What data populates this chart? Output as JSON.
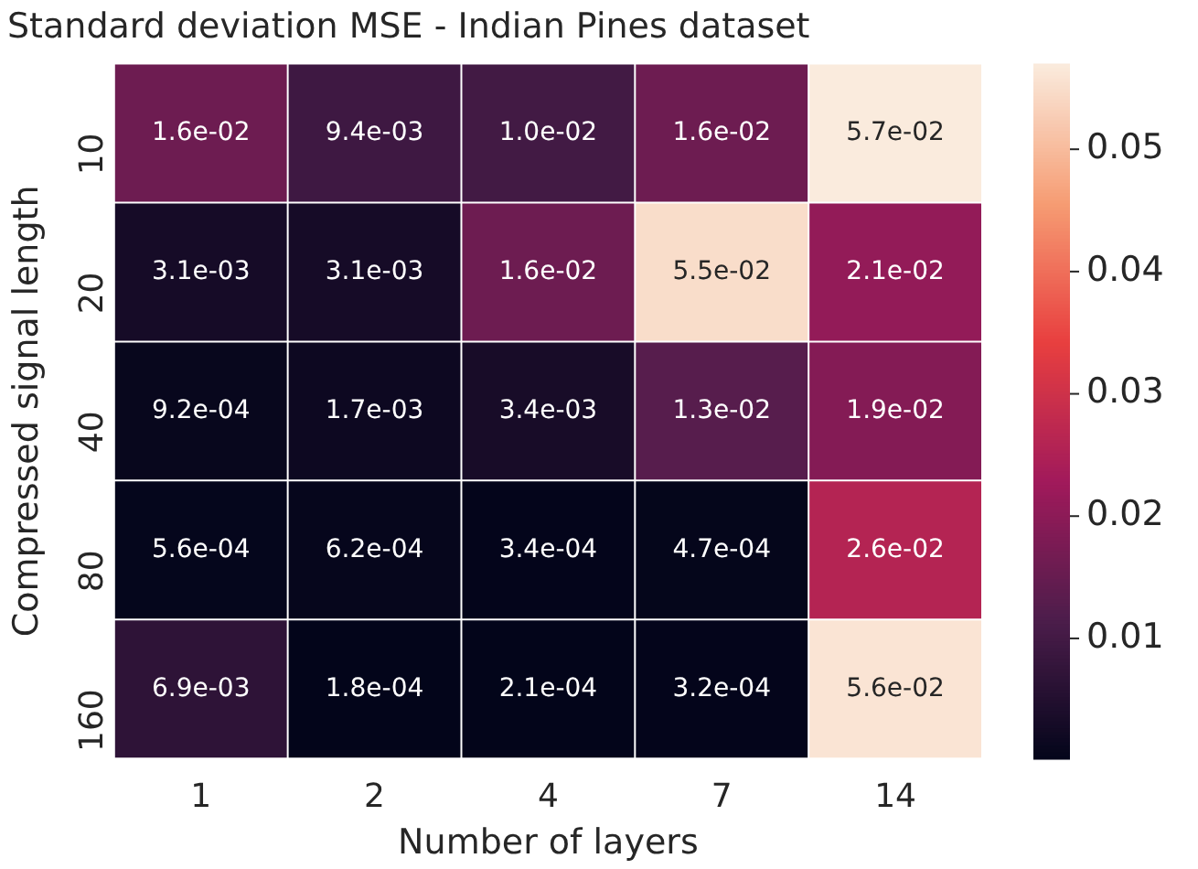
{
  "chart_data": {
    "type": "heatmap",
    "title": "Standard deviation MSE - Indian Pines dataset",
    "xlabel": "Number of layers",
    "ylabel": "Compressed signal length",
    "categories": [
      "1",
      "2",
      "4",
      "7",
      "14"
    ],
    "y_categories": [
      "10",
      "20",
      "40",
      "80",
      "160"
    ],
    "cells": [
      [
        0.016,
        0.0094,
        0.01,
        0.016,
        0.057
      ],
      [
        0.0031,
        0.0031,
        0.016,
        0.055,
        0.021
      ],
      [
        0.00092,
        0.0017,
        0.0034,
        0.013,
        0.019
      ],
      [
        0.00056,
        0.00062,
        0.00034,
        0.00047,
        0.026
      ],
      [
        0.0069,
        0.00018,
        0.00021,
        0.00032,
        0.056
      ]
    ],
    "cell_labels": [
      [
        "1.6e-02",
        "9.4e-03",
        "1.0e-02",
        "1.6e-02",
        "5.7e-02"
      ],
      [
        "3.1e-03",
        "3.1e-03",
        "1.6e-02",
        "5.5e-02",
        "2.1e-02"
      ],
      [
        "9.2e-04",
        "1.7e-03",
        "3.4e-03",
        "1.3e-02",
        "1.9e-02"
      ],
      [
        "5.6e-04",
        "6.2e-04",
        "3.4e-04",
        "4.7e-04",
        "2.6e-02"
      ],
      [
        "6.9e-03",
        "1.8e-04",
        "2.1e-04",
        "3.2e-04",
        "5.6e-02"
      ]
    ],
    "clim": [
      0.00018,
      0.057
    ],
    "cticks": [
      0.01,
      0.02,
      0.03,
      0.04,
      0.05
    ]
  }
}
